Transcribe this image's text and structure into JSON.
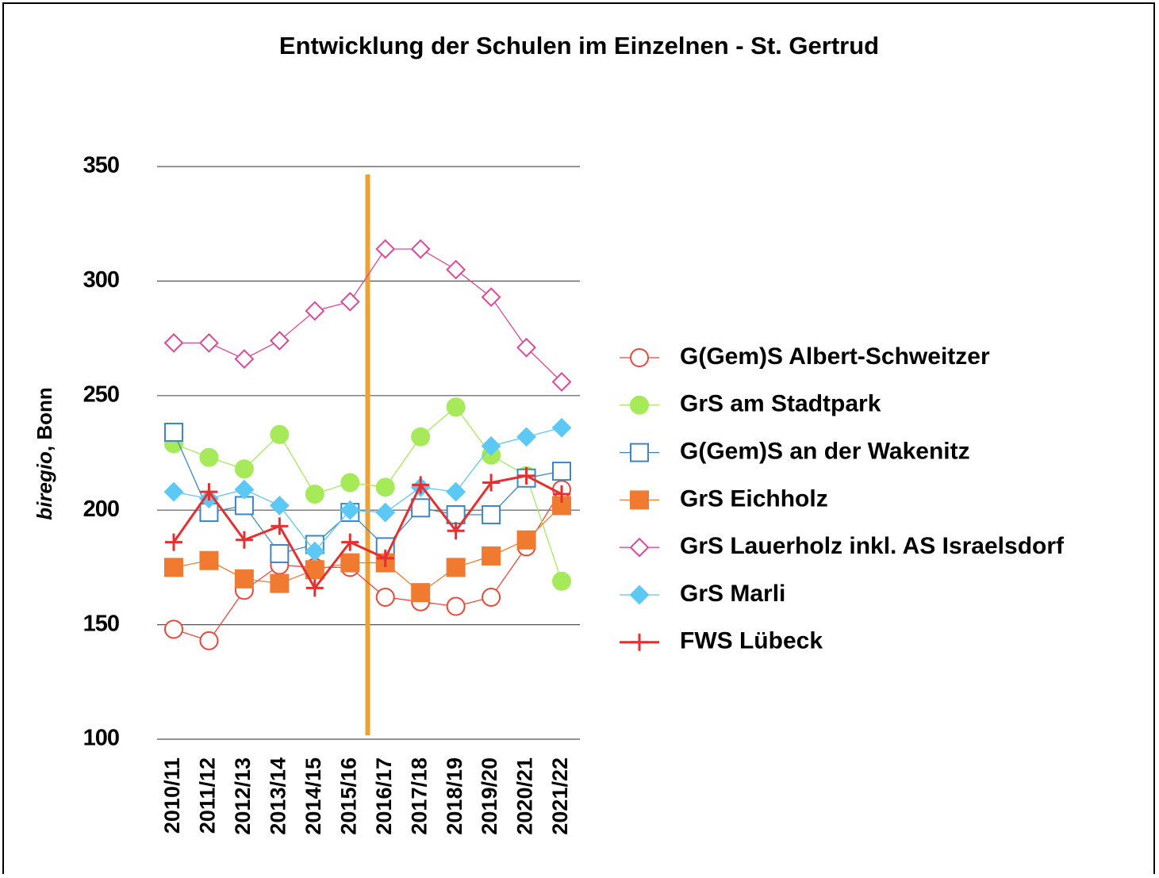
{
  "chart_data": {
    "type": "line",
    "title": "Entwicklung der Schulen im Einzelnen - St. Gertrud",
    "y_label": [
      "biregio",
      ", Bonn"
    ],
    "categories": [
      "2010/11",
      "2011/12",
      "2012/13",
      "2013/14",
      "2014/15",
      "2015/16",
      "2016/17",
      "2017/18",
      "2018/19",
      "2019/20",
      "2020/21",
      "2021/22"
    ],
    "ylim": [
      100,
      350
    ],
    "yticks": [
      100,
      150,
      200,
      250,
      300,
      350
    ],
    "grid": true,
    "legend": "right",
    "series": [
      {
        "name": "G(Gem)S Albert-Schweitzer",
        "color": "#e8483a",
        "marker": "circle-open",
        "values": [
          148,
          143,
          165,
          176,
          175,
          175,
          162,
          160,
          158,
          162,
          184,
          209
        ]
      },
      {
        "name": "GrS am Stadtpark",
        "color": "#a6ea5a",
        "marker": "circle",
        "values": [
          229,
          223,
          218,
          233,
          207,
          212,
          210,
          232,
          245,
          224,
          215,
          169
        ]
      },
      {
        "name": "G(Gem)S an der Wakenitz",
        "color": "#3b86c6",
        "marker": "square-open",
        "values": [
          234,
          199,
          202,
          181,
          185,
          199,
          184,
          201,
          198,
          198,
          214,
          217
        ]
      },
      {
        "name": "GrS Eichholz",
        "color": "#f07a30",
        "marker": "square",
        "values": [
          175,
          178,
          170,
          168,
          174,
          177,
          177,
          164,
          175,
          180,
          187,
          202
        ]
      },
      {
        "name": "GrS Lauerholz inkl. AS Israelsdorf",
        "color": "#e0479a",
        "marker": "diamond-open",
        "values": [
          273,
          273,
          266,
          274,
          287,
          291,
          314,
          314,
          305,
          293,
          271,
          256
        ]
      },
      {
        "name": "GrS Marli",
        "color": "#5bc8f5",
        "marker": "diamond",
        "values": [
          208,
          205,
          209,
          202,
          182,
          200,
          199,
          210,
          208,
          228,
          232,
          236
        ]
      },
      {
        "name": "FWS Lübeck",
        "color": "#e63030",
        "marker": "plus",
        "values": [
          186,
          208,
          187,
          193,
          166,
          186,
          179,
          211,
          191,
          212,
          215,
          207
        ]
      }
    ]
  }
}
